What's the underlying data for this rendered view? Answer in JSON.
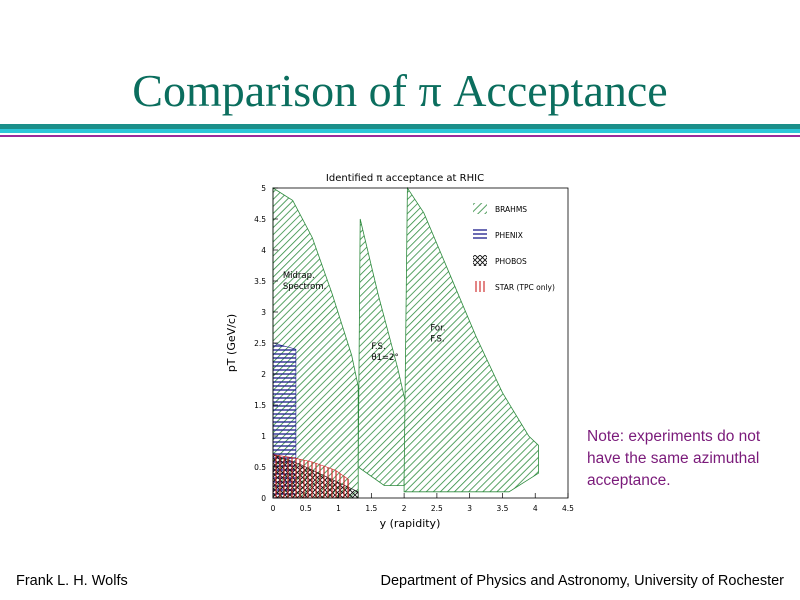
{
  "slide": {
    "title": "Comparison of π Acceptance",
    "note": "Note: experiments do not have the same azimuthal acceptance.",
    "footer_left": "Frank L. H. Wolfs",
    "footer_right": "Department of Physics and Astronomy, University of Rochester"
  },
  "colors": {
    "title": "#0b6e5e",
    "rule_teal": "#1a8f8a",
    "rule_cyan": "#2ec6d8",
    "rule_purple": "#9b2a9b",
    "note": "#7a1a7a",
    "brahms": "#2e8b3e",
    "phenix": "#1c1c8c",
    "phobos": "#111111",
    "star": "#cc1f1f"
  },
  "chart_data": {
    "type": "area",
    "title": "Identified π acceptance at RHIC",
    "xlabel": "y (rapidity)",
    "ylabel": "pT (GeV/c)",
    "xlim": [
      0,
      4.5
    ],
    "ylim": [
      0,
      5
    ],
    "x_ticks": [
      "0",
      "0.5",
      "1",
      "1.5",
      "2",
      "2.5",
      "3",
      "3.5",
      "4",
      "4.5"
    ],
    "y_ticks": [
      "0",
      "0.5",
      "1",
      "1.5",
      "2",
      "2.5",
      "3",
      "3.5",
      "4",
      "4.5",
      "5"
    ],
    "legend_placement": "top-right",
    "legend": [
      {
        "key": "brahms",
        "label": "BRAHMS",
        "pattern": "diagonal-hatch"
      },
      {
        "key": "phenix",
        "label": "PHENIX",
        "pattern": "horizontal-hatch"
      },
      {
        "key": "phobos",
        "label": "PHOBOS",
        "pattern": "cross-hatch"
      },
      {
        "key": "star",
        "label": "STAR (TPC only)",
        "pattern": "vertical-hatch"
      }
    ],
    "annotations": [
      {
        "lines": [
          "Midrap.",
          "Spectrom."
        ],
        "x": 0.15,
        "y": 3.55
      },
      {
        "lines": [
          "F.S.",
          "θ1=2°"
        ],
        "x": 1.5,
        "y": 2.4
      },
      {
        "lines": [
          "For.",
          "F.S."
        ],
        "x": 2.4,
        "y": 2.7
      }
    ],
    "series": [
      {
        "key": "brahms",
        "name": "BRAHMS Midrap. Spectrom.",
        "points": [
          [
            0,
            0
          ],
          [
            0,
            5.0
          ],
          [
            0.3,
            4.8
          ],
          [
            0.6,
            4.2
          ],
          [
            0.9,
            3.3
          ],
          [
            1.2,
            2.3
          ],
          [
            1.3,
            1.8
          ],
          [
            1.3,
            0
          ]
        ]
      },
      {
        "key": "brahms",
        "name": "BRAHMS F.S. θ1=2°",
        "points": [
          [
            1.3,
            0.5
          ],
          [
            1.33,
            4.5
          ],
          [
            1.6,
            3.3
          ],
          [
            1.9,
            2.1
          ],
          [
            2.03,
            1.5
          ],
          [
            2.0,
            0.2
          ],
          [
            1.7,
            0.2
          ]
        ]
      },
      {
        "key": "brahms",
        "name": "BRAHMS For. F.S.",
        "points": [
          [
            2.0,
            0.3
          ],
          [
            2.05,
            5.0
          ],
          [
            2.3,
            4.6
          ],
          [
            2.7,
            3.6
          ],
          [
            3.1,
            2.6
          ],
          [
            3.5,
            1.7
          ],
          [
            3.9,
            1.0
          ],
          [
            4.05,
            0.85
          ],
          [
            4.05,
            0.4
          ],
          [
            3.6,
            0.1
          ],
          [
            2.9,
            0.1
          ],
          [
            2.0,
            0.1
          ]
        ]
      },
      {
        "key": "phenix",
        "name": "PHENIX",
        "points": [
          [
            0,
            0
          ],
          [
            0,
            2.5
          ],
          [
            0.35,
            2.4
          ],
          [
            0.35,
            0
          ]
        ]
      },
      {
        "key": "phobos",
        "name": "PHOBOS",
        "points": [
          [
            0,
            0
          ],
          [
            0,
            0.7
          ],
          [
            0.4,
            0.55
          ],
          [
            0.8,
            0.35
          ],
          [
            1.1,
            0.2
          ],
          [
            1.3,
            0.1
          ],
          [
            1.3,
            0
          ]
        ]
      },
      {
        "key": "star",
        "name": "STAR (TPC only)",
        "points": [
          [
            0,
            0
          ],
          [
            0,
            0.7
          ],
          [
            0.3,
            0.65
          ],
          [
            0.6,
            0.58
          ],
          [
            0.95,
            0.45
          ],
          [
            1.15,
            0.3
          ],
          [
            1.15,
            0
          ]
        ]
      }
    ]
  }
}
